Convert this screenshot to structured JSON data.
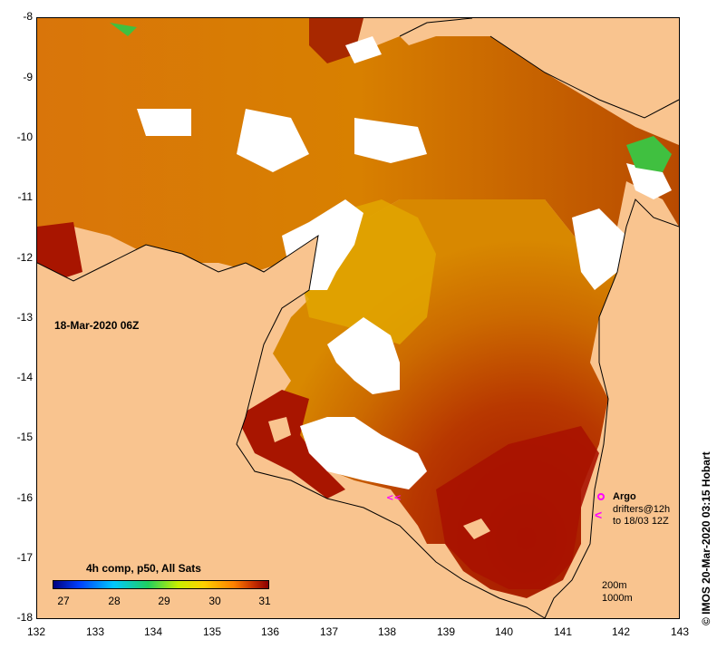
{
  "map": {
    "date_label": "18-Mar-2020 06Z",
    "credit": "© IMOS 20-Mar-2020 03:15 Hobart",
    "lat_ticks": [
      "-8",
      "-9",
      "-10",
      "-11",
      "-12",
      "-13",
      "-14",
      "-15",
      "-16",
      "-17",
      "-18"
    ],
    "lon_ticks": [
      "132",
      "133",
      "134",
      "135",
      "136",
      "137",
      "138",
      "139",
      "140",
      "141",
      "142",
      "143"
    ],
    "colorbar": {
      "title": "4h comp, p50, All Sats",
      "ticks": [
        "27",
        "28",
        "29",
        "30",
        "31"
      ]
    },
    "legend": {
      "argo": "Argo",
      "drifters_line1": "drifters@12h",
      "drifters_line2": "to 18/03 12Z",
      "drifter_symbol": "<"
    },
    "depth_contours": {
      "shallow": "200m",
      "deep": "1000m"
    },
    "colors": {
      "land": "#f9c48f",
      "no_data": "#ffffff",
      "sst_warm": "#a01000",
      "sst_mid": "#d86a00",
      "sst_cool": "#e8b000",
      "marker": "#ff00ff"
    }
  }
}
